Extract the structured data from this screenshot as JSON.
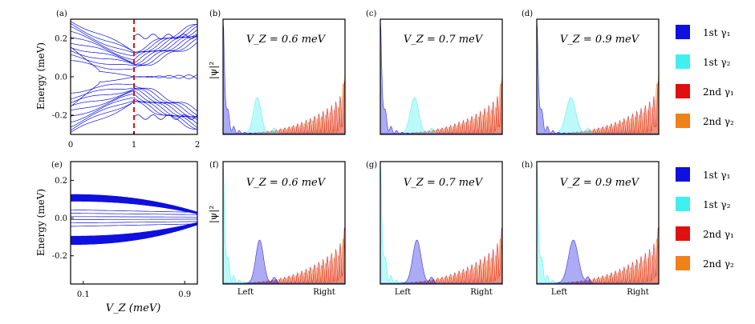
{
  "panels": {
    "a": {
      "label": "(a)"
    },
    "e": {
      "label": "(e)"
    },
    "b": {
      "label": "(b)",
      "vz": "V_Z = 0.6 meV"
    },
    "c": {
      "label": "(c)",
      "vz": "V_Z = 0.7 meV"
    },
    "d": {
      "label": "(d)",
      "vz": "V_Z = 0.9 meV"
    },
    "f": {
      "label": "(f)",
      "vz": "V_Z = 0.6 meV"
    },
    "g": {
      "label": "(g)",
      "vz": "V_Z = 0.7 meV"
    },
    "h": {
      "label": "(h)",
      "vz": "V_Z = 0.9 meV"
    }
  },
  "axes": {
    "energy_label": "Energy (meV)",
    "psi_label": "|ψ|²",
    "vz_label": "V_Z (meV)",
    "left_label": "Left",
    "right_label": "Right"
  },
  "legend": [
    {
      "name": "1st γ₁",
      "color": "#1010e0"
    },
    {
      "name": "1st γ₂",
      "color": "#40f0f0"
    },
    {
      "name": "2nd γ₁",
      "color": "#e01010"
    },
    {
      "name": "2nd γ₂",
      "color": "#f08018"
    }
  ],
  "chart_data": [
    {
      "type": "line",
      "panel": "a",
      "ylabel": "Energy (meV)",
      "xlim": [
        0,
        2
      ],
      "ylim": [
        -0.3,
        0.3
      ],
      "x_ticks": [
        0,
        1,
        2
      ],
      "x_tick_labels": [
        "0",
        "1",
        "2"
      ],
      "y_ticks": [
        0.2,
        0.0,
        -0.2
      ],
      "y_tick_labels": [
        "0.2",
        "0.0",
        "-0.2"
      ],
      "marker_x": 1,
      "marker_color": "#e01010",
      "line_color": "#1010e0"
    },
    {
      "type": "line",
      "panel": "e",
      "ylabel": "Energy (meV)",
      "xlabel": "V_Z (meV)",
      "xlim": [
        0,
        1
      ],
      "ylim": [
        -0.35,
        0.3
      ],
      "x_ticks": [
        0.1,
        0.9
      ],
      "x_tick_labels": [
        "0.1",
        "0.9"
      ],
      "y_ticks": [
        0.2,
        0.0,
        -0.2
      ],
      "y_tick_labels": [
        "0.2",
        "0.0",
        "-0.2"
      ],
      "line_color": "#1010e0"
    },
    {
      "type": "area",
      "panel": "b",
      "vz_meV": 0.6
    },
    {
      "type": "area",
      "panel": "c",
      "vz_meV": 0.7
    },
    {
      "type": "area",
      "panel": "d",
      "vz_meV": 0.9
    },
    {
      "type": "area",
      "panel": "f",
      "vz_meV": 0.6
    },
    {
      "type": "area",
      "panel": "g",
      "vz_meV": 0.7
    },
    {
      "type": "area",
      "panel": "h",
      "vz_meV": 0.9
    }
  ]
}
